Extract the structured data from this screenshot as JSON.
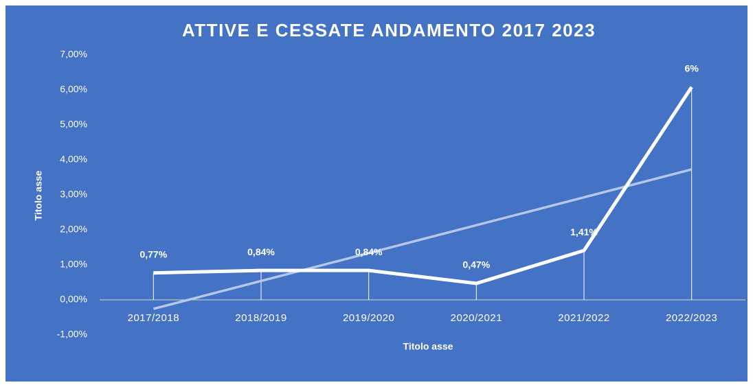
{
  "chart_data": {
    "type": "line",
    "title": "ATTIVE E CESSATE ANDAMENTO 2017 2023",
    "x_label": "Titolo asse",
    "y_label": "Titolo asse",
    "categories": [
      "2017/2018",
      "2018/2019",
      "2019/2020",
      "2020/2021",
      "2021/2022",
      "2022/2023"
    ],
    "values": [
      0.77,
      0.84,
      0.84,
      0.47,
      1.41,
      6.08
    ],
    "value_labels": [
      "0,77%",
      "0,84%",
      "0,84%",
      "0,47%",
      "1,41%",
      "6%"
    ],
    "color": "#ffffff",
    "drop_lines": true,
    "trendline": true,
    "ylim": [
      -1,
      7
    ],
    "yticks": [
      {
        "value": -1,
        "label": "-1,00%"
      },
      {
        "value": 0,
        "label": "0,00%"
      },
      {
        "value": 1,
        "label": "1,00%"
      },
      {
        "value": 2,
        "label": "2,00%"
      },
      {
        "value": 3,
        "label": "3,00%"
      },
      {
        "value": 4,
        "label": "4,00%"
      },
      {
        "value": 5,
        "label": "5,00%"
      },
      {
        "value": 6,
        "label": "6,00%"
      },
      {
        "value": 7,
        "label": "7,00%"
      }
    ],
    "grid": false
  }
}
